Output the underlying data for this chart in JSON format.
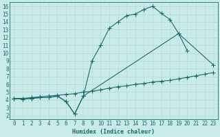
{
  "xlabel": "Humidex (Indice chaleur)",
  "bg_color": "#c8eae8",
  "grid_color": "#b0d4d0",
  "line_color": "#1a6b6b",
  "xlim": [
    -0.5,
    23.5
  ],
  "ylim": [
    1.5,
    16.5
  ],
  "xticks": [
    0,
    1,
    2,
    3,
    4,
    5,
    6,
    7,
    8,
    9,
    10,
    11,
    12,
    13,
    14,
    15,
    16,
    17,
    18,
    19,
    20,
    21,
    22,
    23
  ],
  "yticks": [
    2,
    3,
    4,
    5,
    6,
    7,
    8,
    9,
    10,
    11,
    12,
    13,
    14,
    15,
    16
  ],
  "c1x": [
    0,
    1,
    2,
    3,
    4,
    5,
    6,
    7,
    8,
    9,
    10,
    11,
    12,
    13,
    14,
    15,
    16,
    17,
    18,
    19,
    20
  ],
  "c1y": [
    4.2,
    4.1,
    4.2,
    4.3,
    4.3,
    4.5,
    3.8,
    2.2,
    4.5,
    9.0,
    11.0,
    13.2,
    14.0,
    14.8,
    15.0,
    15.6,
    16.0,
    15.1,
    14.3,
    12.5,
    10.3
  ],
  "c2x": [
    0,
    1,
    2,
    3,
    4,
    5,
    6,
    7,
    8,
    19,
    23
  ],
  "c2y": [
    4.2,
    4.1,
    4.2,
    4.3,
    4.3,
    4.5,
    3.8,
    2.2,
    4.5,
    12.5,
    8.5
  ],
  "c3x": [
    0,
    1,
    2,
    3,
    4,
    5,
    6,
    7,
    8,
    9,
    10,
    11,
    12,
    13,
    14,
    15,
    16,
    17,
    18,
    19,
    20,
    21,
    22,
    23
  ],
  "c3y": [
    4.2,
    4.2,
    4.3,
    4.4,
    4.5,
    4.6,
    4.7,
    4.8,
    5.0,
    5.1,
    5.3,
    5.5,
    5.7,
    5.8,
    6.0,
    6.1,
    6.3,
    6.4,
    6.5,
    6.7,
    6.9,
    7.1,
    7.3,
    7.5
  ],
  "font_size": 5.5,
  "xlabel_fontsize": 6.0,
  "lw": 0.8,
  "ms": 2.2
}
